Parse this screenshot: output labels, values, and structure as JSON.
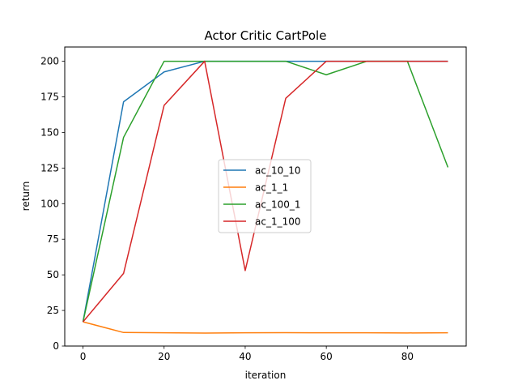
{
  "chart_data": {
    "type": "line",
    "title": "Actor Critic CartPole",
    "xlabel": "iteration",
    "ylabel": "return",
    "xlim": [
      -4.5,
      94.5
    ],
    "ylim": [
      0,
      210
    ],
    "xticks": [
      "0",
      "20",
      "40",
      "60",
      "80"
    ],
    "yticks": [
      "0",
      "25",
      "50",
      "75",
      "100",
      "125",
      "150",
      "175",
      "200"
    ],
    "grid": false,
    "legend_position": "center",
    "x": [
      0,
      10,
      20,
      30,
      40,
      50,
      60,
      70,
      80,
      90
    ],
    "series": [
      {
        "name": "ac_10_10",
        "color": "#1f77b4",
        "values": [
          17,
          171.5,
          192.5,
          200,
          200,
          200,
          200,
          200,
          200,
          200
        ]
      },
      {
        "name": "ac_1_1",
        "color": "#ff7f0e",
        "values": [
          17,
          9.5,
          9.3,
          9.1,
          9.3,
          9.4,
          9.3,
          9.3,
          9.2,
          9.3
        ]
      },
      {
        "name": "ac_100_1",
        "color": "#2ca02c",
        "values": [
          17,
          146.5,
          200,
          200,
          200,
          200,
          190.5,
          200,
          200,
          125.5
        ]
      },
      {
        "name": "ac_1_100",
        "color": "#d62728",
        "values": [
          17,
          51,
          169,
          200,
          53,
          174,
          200,
          200,
          200,
          200
        ]
      }
    ]
  }
}
